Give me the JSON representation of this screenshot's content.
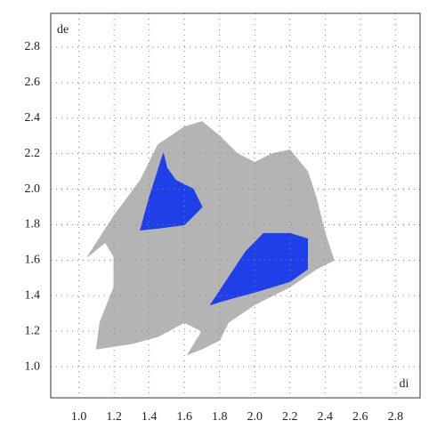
{
  "chart_data": {
    "type": "fingerprint",
    "xlabel": "di",
    "ylabel": "de",
    "xlim": [
      0.84,
      2.94
    ],
    "ylim": [
      0.825,
      2.99
    ],
    "xticks": [
      {
        "value": 1,
        "label": "1.0"
      },
      1.2,
      1.4,
      1.6,
      1.8,
      {
        "value": 2,
        "label": "2.0"
      },
      2.2,
      2.4,
      2.6,
      2.8
    ],
    "yticks": [
      {
        "value": 1,
        "label": "1.0"
      },
      1.2,
      1.4,
      1.6,
      1.8,
      {
        "value": 2,
        "label": "2.0"
      },
      2.2,
      2.4,
      2.6,
      2.8
    ],
    "grid": true,
    "series": [
      {
        "color": "#b4b4b4",
        "x": [
          1.05,
          1.2,
          1.35,
          1.45,
          1.6,
          1.7,
          1.8,
          1.9,
          2.0,
          2.1,
          2.2,
          2.3,
          2.35,
          2.4,
          2.45,
          2.35,
          2.2,
          2.0,
          1.85,
          1.8,
          1.7,
          1.62,
          1.7,
          1.6,
          1.45,
          1.3,
          1.1,
          1.12,
          1.2,
          1.2,
          1.15
        ],
        "y": [
          1.62,
          1.85,
          2.05,
          2.25,
          2.35,
          2.38,
          2.3,
          2.2,
          2.15,
          2.2,
          2.22,
          2.1,
          1.95,
          1.75,
          1.6,
          1.55,
          1.45,
          1.35,
          1.25,
          1.15,
          1.1,
          1.07,
          1.2,
          1.25,
          1.17,
          1.13,
          1.1,
          1.25,
          1.45,
          1.62,
          1.7
        ]
      },
      {
        "color": "#1f3fe8",
        "x": [
          1.35,
          1.4,
          1.48,
          1.5,
          1.55,
          1.65,
          1.7,
          1.6,
          1.45
        ],
        "y": [
          1.77,
          1.95,
          2.2,
          2.12,
          2.05,
          2.0,
          1.9,
          1.8,
          1.78
        ]
      },
      {
        "color": "#1f3fe8",
        "x": [
          1.75,
          1.85,
          1.95,
          2.05,
          2.2,
          2.3,
          2.3,
          2.2,
          2.0,
          1.85
        ],
        "y": [
          1.35,
          1.5,
          1.65,
          1.75,
          1.75,
          1.72,
          1.55,
          1.48,
          1.42,
          1.38
        ]
      }
    ]
  }
}
